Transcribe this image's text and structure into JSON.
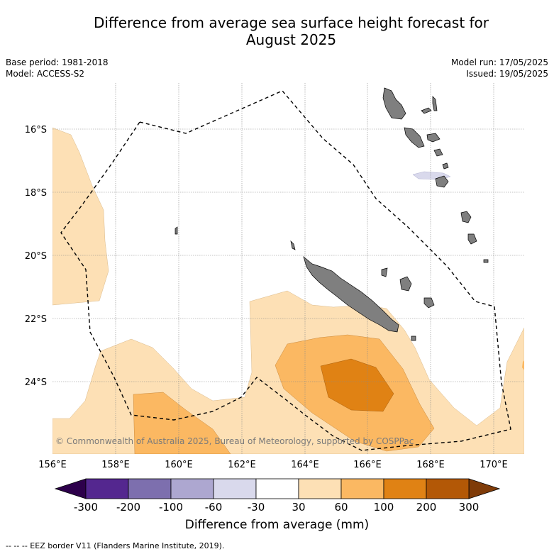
{
  "title_line1": "Difference from average sea surface height forecast for",
  "title_line2": "August 2025",
  "base_period": "Base period: 1981-2018",
  "model": "Model: ACCESS-S2",
  "model_run": "Model run: 17/05/2025",
  "issued": "Issued: 19/05/2025",
  "copyright": "© Commonwealth of Australia 2025, Bureau of Meteorology, supported by COSPPac",
  "lat_labels": [
    "16°S",
    "18°S",
    "20°S",
    "22°S",
    "24°S"
  ],
  "lon_labels": [
    "156°E",
    "158°E",
    "160°E",
    "162°E",
    "164°E",
    "166°E",
    "168°E",
    "170°E"
  ],
  "colorbar": {
    "title": "Difference from average (mm)",
    "tick_labels": [
      "-300",
      "-200",
      "-100",
      "-60",
      "-30",
      "30",
      "60",
      "100",
      "200",
      "300"
    ],
    "colors": [
      "#54278f",
      "#7d6fae",
      "#ada7d0",
      "#d9d9ec",
      "#ffffff",
      "#fde0b5",
      "#fbb862",
      "#e08214",
      "#b35806"
    ],
    "under_color": "#2d004b",
    "over_color": "#7f3b08"
  },
  "legend_footer": "--  --  -- EEZ border V11 (Flanders Marine Institute, 2019).",
  "colors": {
    "land": "#7f7f7f",
    "coastline": "#000000",
    "gridline": "#888888"
  }
}
